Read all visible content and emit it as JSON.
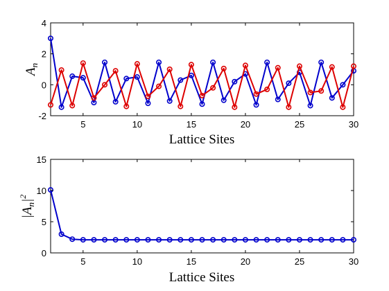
{
  "chart_data": [
    {
      "type": "line",
      "xlabel": "Lattice Sites",
      "ylabel": "A_n",
      "xlim": [
        2,
        30
      ],
      "ylim": [
        -2,
        4
      ],
      "xticks": [
        5,
        10,
        15,
        20,
        25,
        30
      ],
      "yticks": [
        -2,
        0,
        2,
        4
      ],
      "grid": false,
      "series": [
        {
          "color": "#0000cc",
          "x": [
            2,
            3,
            4,
            5,
            6,
            7,
            8,
            9,
            10,
            11,
            12,
            13,
            14,
            15,
            16,
            17,
            18,
            19,
            20,
            21,
            22,
            23,
            24,
            25,
            26,
            27,
            28,
            29,
            30
          ],
          "values": [
            3.0,
            -1.45,
            0.55,
            0.45,
            -1.15,
            1.45,
            -1.1,
            0.4,
            0.5,
            -1.2,
            1.45,
            -1.05,
            0.3,
            0.6,
            -1.25,
            1.45,
            -1.0,
            0.2,
            0.7,
            -1.3,
            1.45,
            -0.95,
            0.1,
            0.8,
            -1.35,
            1.45,
            -0.85,
            0.0,
            0.9
          ]
        },
        {
          "color": "#dd0000",
          "x": [
            2,
            3,
            4,
            5,
            6,
            7,
            8,
            9,
            10,
            11,
            12,
            13,
            14,
            15,
            16,
            17,
            18,
            19,
            20,
            21,
            22,
            23,
            24,
            25,
            26,
            27,
            28,
            29,
            30
          ],
          "values": [
            -1.3,
            0.95,
            -1.35,
            1.4,
            -0.85,
            0.0,
            0.9,
            -1.4,
            1.35,
            -0.75,
            -0.1,
            1.0,
            -1.4,
            1.3,
            -0.7,
            -0.2,
            1.05,
            -1.45,
            1.25,
            -0.6,
            -0.3,
            1.1,
            -1.45,
            1.2,
            -0.5,
            -0.4,
            1.15,
            -1.45,
            1.2
          ]
        }
      ]
    },
    {
      "type": "line",
      "xlabel": "Lattice Sites",
      "ylabel": "|A_n|^2",
      "xlim": [
        2,
        30
      ],
      "ylim": [
        0,
        15
      ],
      "xticks": [
        5,
        10,
        15,
        20,
        25,
        30
      ],
      "yticks": [
        0,
        5,
        10,
        15
      ],
      "grid": false,
      "series": [
        {
          "color": "#0000cc",
          "x": [
            2,
            3,
            4,
            5,
            6,
            7,
            8,
            9,
            10,
            11,
            12,
            13,
            14,
            15,
            16,
            17,
            18,
            19,
            20,
            21,
            22,
            23,
            24,
            25,
            26,
            27,
            28,
            29,
            30
          ],
          "values": [
            10.1,
            3.0,
            2.2,
            2.1,
            2.1,
            2.1,
            2.1,
            2.1,
            2.1,
            2.1,
            2.1,
            2.1,
            2.1,
            2.1,
            2.1,
            2.1,
            2.1,
            2.1,
            2.1,
            2.1,
            2.1,
            2.1,
            2.1,
            2.1,
            2.1,
            2.1,
            2.1,
            2.1,
            2.1
          ]
        }
      ]
    }
  ]
}
